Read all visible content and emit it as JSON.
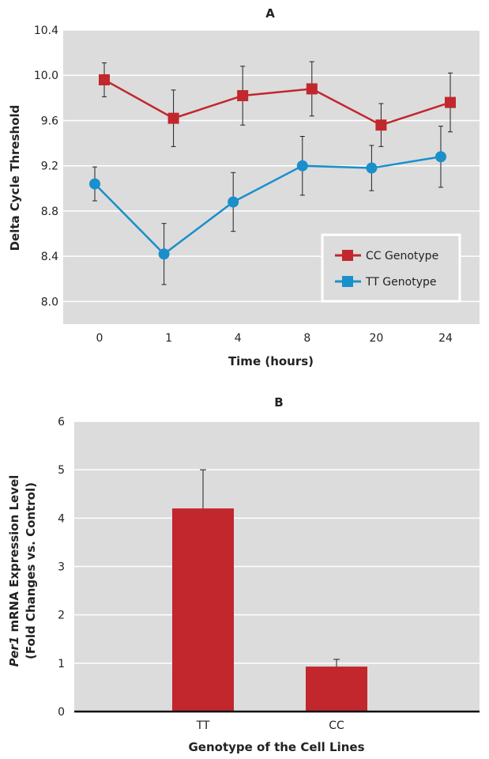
{
  "colors": {
    "cc": "#c1272d",
    "tt": "#1a8fcc",
    "plot_bg": "#dcdcdc",
    "grid": "#ffffff",
    "bar": "#c1272d"
  },
  "chart_data": [
    {
      "panel": "A",
      "type": "line",
      "title": "A",
      "xlabel": "Time (hours)",
      "ylabel": "Delta Cycle Threshold",
      "categories": [
        "0",
        "1",
        "4",
        "8",
        "20",
        "24"
      ],
      "ylim": [
        7.8,
        10.4
      ],
      "yticks": [
        "10.4",
        "10.0",
        "9.6",
        "9.2",
        "8.8",
        "8.4",
        "8.0"
      ],
      "grid": true,
      "legend_position": "lower-right",
      "series": [
        {
          "name": "CC Genotype",
          "marker": "square",
          "values": [
            9.96,
            9.62,
            9.82,
            9.88,
            9.56,
            9.76
          ],
          "err": [
            0.15,
            0.25,
            0.26,
            0.24,
            0.19,
            0.26
          ]
        },
        {
          "name": "TT Genotype",
          "marker": "circle",
          "values": [
            9.04,
            8.42,
            8.88,
            9.2,
            9.18,
            9.28
          ],
          "err": [
            0.15,
            0.27,
            0.26,
            0.26,
            0.2,
            0.27
          ]
        }
      ]
    },
    {
      "panel": "B",
      "type": "bar",
      "title": "B",
      "xlabel": "Genotype of the Cell Lines",
      "ylabel_italic": "Per1",
      "ylabel_rest": " mRNA Expression Level",
      "ylabel_line2": "(Fold Changes vs. Control)",
      "categories": [
        "TT",
        "CC"
      ],
      "values": [
        4.2,
        0.93
      ],
      "err": [
        0.8,
        0.15
      ],
      "ylim": [
        0,
        6
      ],
      "yticks": [
        "0",
        "1",
        "2",
        "3",
        "4",
        "5",
        "6"
      ],
      "grid": true
    }
  ]
}
